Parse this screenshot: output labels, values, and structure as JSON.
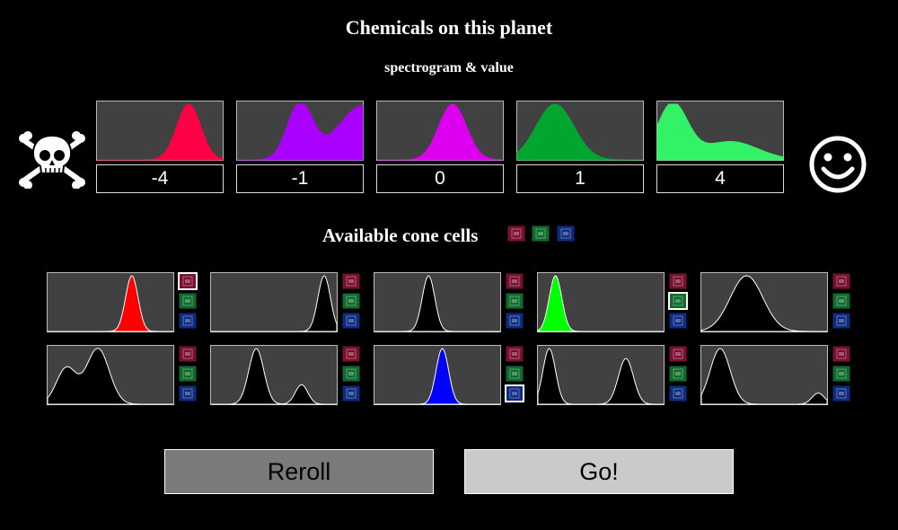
{
  "header": {
    "title": "Chemicals on this planet",
    "subtitle": "spectrogram & value"
  },
  "chemicals": [
    {
      "value": "-4",
      "color": "#ff0044",
      "peaks": [
        [
          0.73,
          0.095,
          1.0
        ]
      ]
    },
    {
      "value": "-1",
      "color": "#aa00ff",
      "peaks": [
        [
          0.5,
          0.1,
          1.0
        ],
        [
          1.0,
          0.2,
          0.97
        ]
      ]
    },
    {
      "value": "0",
      "color": "#dd00ee",
      "peaks": [
        [
          0.6,
          0.11,
          1.0
        ]
      ]
    },
    {
      "value": "1",
      "color": "#00a62e",
      "peaks": [
        [
          0.3,
          0.15,
          1.0
        ]
      ]
    },
    {
      "value": "4",
      "color": "#33f266",
      "peaks": [
        [
          0.12,
          0.12,
          1.0
        ],
        [
          0.58,
          0.22,
          0.33
        ]
      ]
    }
  ],
  "icons": {
    "left": "skull-crossbones-icon",
    "right": "smiley-icon"
  },
  "cones_heading": "Available cone cells",
  "cone_colors": {
    "red": "#7a1030",
    "green": "#0f6b2b",
    "blue": "#0d2c80"
  },
  "cone_cells": [
    {
      "fill": "#ff0000",
      "selected": "red",
      "peaks": [
        [
          0.67,
          0.05,
          1.0
        ]
      ]
    },
    {
      "fill": "#000000",
      "selected": null,
      "peaks": [
        [
          0.9,
          0.05,
          1.0
        ]
      ]
    },
    {
      "fill": "#000000",
      "selected": null,
      "peaks": [
        [
          0.43,
          0.05,
          1.0
        ]
      ]
    },
    {
      "fill": "#00ff00",
      "selected": "green",
      "peaks": [
        [
          0.14,
          0.05,
          1.0
        ]
      ]
    },
    {
      "fill": "#000000",
      "selected": null,
      "peaks": [
        [
          0.36,
          0.13,
          1.0
        ]
      ]
    },
    {
      "fill": "#000000",
      "selected": null,
      "peaks": [
        [
          0.15,
          0.08,
          0.65
        ],
        [
          0.4,
          0.09,
          1.0
        ]
      ]
    },
    {
      "fill": "#000000",
      "selected": null,
      "peaks": [
        [
          0.36,
          0.06,
          1.0
        ],
        [
          0.72,
          0.05,
          0.35
        ]
      ]
    },
    {
      "fill": "#0000ff",
      "selected": "blue",
      "peaks": [
        [
          0.54,
          0.05,
          1.0
        ]
      ]
    },
    {
      "fill": "#000000",
      "selected": null,
      "peaks": [
        [
          0.09,
          0.05,
          1.0
        ],
        [
          0.7,
          0.06,
          0.82
        ]
      ]
    },
    {
      "fill": "#000000",
      "selected": null,
      "peaks": [
        [
          0.15,
          0.08,
          1.0
        ],
        [
          0.93,
          0.05,
          0.2
        ]
      ]
    }
  ],
  "buttons": {
    "reroll": "Reroll",
    "go": "Go!"
  }
}
